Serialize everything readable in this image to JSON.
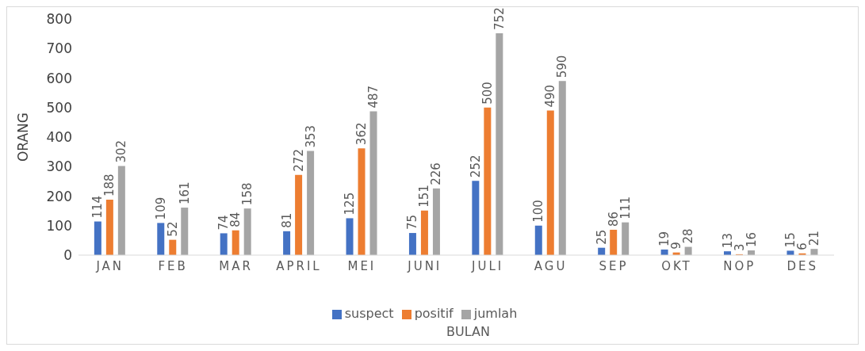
{
  "chart_data": {
    "type": "bar",
    "xlabel": "BULAN",
    "ylabel": "ORANG",
    "categories": [
      "JAN",
      "FEB",
      "MAR",
      "APRIL",
      "MEI",
      "JUNI",
      "JULI",
      "AGU",
      "SEP",
      "OKT",
      "NOP",
      "DES"
    ],
    "series": [
      {
        "name": "suspect",
        "color": "#4472c4",
        "values": [
          114,
          109,
          74,
          81,
          125,
          75,
          252,
          100,
          25,
          19,
          13,
          15
        ]
      },
      {
        "name": "positif",
        "color": "#ed7d31",
        "values": [
          188,
          52,
          84,
          272,
          362,
          151,
          500,
          490,
          86,
          9,
          3,
          6
        ]
      },
      {
        "name": "jumlah",
        "color": "#a5a5a5",
        "values": [
          302,
          161,
          158,
          353,
          487,
          226,
          752,
          590,
          111,
          28,
          16,
          21
        ]
      }
    ],
    "ylim": [
      0,
      800
    ],
    "yticks": [
      0,
      100,
      200,
      300,
      400,
      500,
      600,
      700,
      800
    ],
    "legend": "bottom",
    "data_labels": true
  }
}
